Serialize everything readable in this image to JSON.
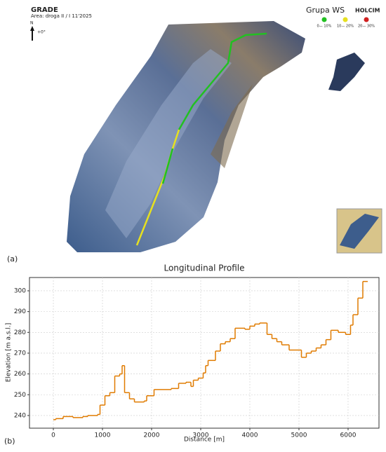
{
  "map": {
    "title": "GRADE",
    "subtitle": "Area: droga II / I 11'2025",
    "north": "N",
    "bearing": "+0°",
    "brand": "Grupa WS",
    "brand2": "HOLCIM",
    "legend": [
      {
        "label": "0— 10%",
        "color": "#22c022"
      },
      {
        "label": "10— 20%",
        "color": "#e6e020"
      },
      {
        "label": "20— 30%",
        "color": "#d02020"
      }
    ]
  },
  "panels": {
    "a": "(a)",
    "b": "(b)"
  },
  "chart_data": {
    "type": "line",
    "step": "post",
    "title": "Longitudinal Profile",
    "x_label": "Distance [m]",
    "y_label": "Elevation [m a.s.l.]",
    "x": [
      0,
      50,
      200,
      400,
      600,
      700,
      900,
      950,
      1050,
      1150,
      1250,
      1350,
      1400,
      1450,
      1550,
      1650,
      1750,
      1850,
      1900,
      2050,
      2400,
      2550,
      2700,
      2800,
      2850,
      2950,
      3050,
      3100,
      3150,
      3300,
      3400,
      3500,
      3600,
      3700,
      3900,
      4000,
      4100,
      4200,
      4350,
      4450,
      4550,
      4650,
      4800,
      5050,
      5150,
      5250,
      5350,
      5450,
      5550,
      5650,
      5800,
      5950,
      6050,
      6100,
      6200,
      6300,
      6400
    ],
    "series": [
      {
        "name": "Profile",
        "color": "#e07b00",
        "values": [
          238,
          238.5,
          239.5,
          239,
          239.5,
          240,
          240.5,
          245,
          249.5,
          251,
          259,
          260,
          264,
          251,
          248,
          246.5,
          246.5,
          247,
          249.5,
          252.5,
          253,
          255.5,
          256,
          254,
          257,
          258,
          260.5,
          264,
          266.5,
          271,
          274.5,
          275.5,
          277,
          282,
          281.5,
          283,
          284,
          284.5,
          279,
          277,
          275.5,
          274,
          271.5,
          268,
          270,
          271,
          272.5,
          274,
          276.5,
          281,
          280,
          279,
          283.5,
          288.5,
          296.5,
          304.5,
          304.5
        ]
      }
    ],
    "xlim": [
      -486,
      6629
    ],
    "ylim": [
      233.9,
      306.4
    ],
    "xticks": [
      0,
      1000,
      2000,
      3000,
      4000,
      5000,
      6000
    ],
    "yticks": [
      240,
      250,
      260,
      270,
      280,
      290,
      300
    ],
    "grid": true
  }
}
